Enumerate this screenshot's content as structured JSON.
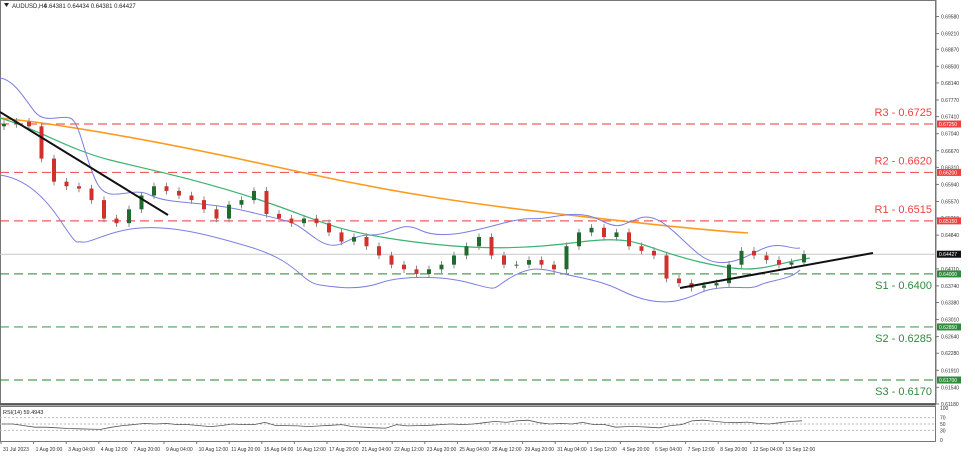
{
  "header": {
    "symbol_label": "AUDUSD,H4",
    "ohlc_label": "0.64381 0.64434 0.64381 0.64427"
  },
  "colors": {
    "bull": "#1f6b2e",
    "bear": "#d0312d",
    "wick": "#888888",
    "bollinger": "#7b7fe0",
    "ma_green": "#3cb371",
    "ma_orange": "#ff9a1f",
    "resistance": "#f04040",
    "support": "#2e8b3a",
    "trendline": "#111111",
    "current_price_line": "#c8c8c8",
    "current_price_tag": "#111111"
  },
  "price_axis": {
    "ticks": [
      "0.69580",
      "0.69210",
      "0.68870",
      "0.68500",
      "0.68140",
      "0.67770",
      "0.67410",
      "0.67040",
      "0.66670",
      "0.66310",
      "0.65940",
      "0.65570",
      "0.65210",
      "0.64840",
      "0.64110",
      "0.63740",
      "0.63380",
      "0.63010",
      "0.62640",
      "0.62280",
      "0.61910",
      "0.61540",
      "0.61180"
    ],
    "current_price": "0.64427"
  },
  "levels": [
    {
      "label": "R3 - 0.6725",
      "value": 0.6725,
      "tag": "0.67250",
      "type": "resistance"
    },
    {
      "label": "R2 - 0.6620",
      "value": 0.662,
      "tag": "0.66200",
      "type": "resistance"
    },
    {
      "label": "R1 - 0.6515",
      "value": 0.6515,
      "tag": "0.65150",
      "type": "resistance"
    },
    {
      "label": "S1 - 0.6400",
      "value": 0.64,
      "tag": "0.64000",
      "type": "support"
    },
    {
      "label": "S2 - 0.6285",
      "value": 0.6285,
      "tag": "0.62850",
      "type": "support"
    },
    {
      "label": "S3 - 0.6170",
      "value": 0.617,
      "tag": "0.61700",
      "type": "support"
    }
  ],
  "rsi": {
    "label": "RSI(14) 59.4943",
    "ticks": [
      "100",
      "70",
      "50",
      "30",
      "0"
    ]
  },
  "time_axis": {
    "labels": [
      "31 Jul 2023",
      "1 Aug 20:00",
      "3 Aug 04:00",
      "4 Aug 12:00",
      "7 Aug 20:00",
      "9 Aug 04:00",
      "10 Aug 12:00",
      "11 Aug 20:00",
      "15 Aug 04:00",
      "16 Aug 12:00",
      "17 Aug 20:00",
      "21 Aug 04:00",
      "22 Aug 12:00",
      "23 Aug 20:00",
      "25 Aug 04:00",
      "28 Aug 12:00",
      "29 Aug 20:00",
      "31 Aug 04:00",
      "1 Sep 12:00",
      "4 Sep 20:00",
      "6 Sep 04:00",
      "7 Sep 12:00",
      "8 Sep 20:00",
      "12 Sep 04:00",
      "13 Sep 12:00"
    ]
  },
  "chart_data": {
    "type": "candlestick",
    "title": "AUDUSD,H4",
    "ylim": [
      0.6118,
      0.6958
    ],
    "xlabel": "",
    "ylabel": "",
    "grid": false,
    "series": [
      {
        "name": "Price (approx close path)",
        "values": [
          0.6725,
          0.673,
          0.672,
          0.665,
          0.66,
          0.659,
          0.6585,
          0.656,
          0.652,
          0.651,
          0.654,
          0.657,
          0.659,
          0.658,
          0.657,
          0.656,
          0.654,
          0.652,
          0.655,
          0.656,
          0.658,
          0.653,
          0.652,
          0.651,
          0.652,
          0.651,
          0.649,
          0.647,
          0.648,
          0.646,
          0.644,
          0.642,
          0.641,
          0.64,
          0.641,
          0.642,
          0.644,
          0.646,
          0.648,
          0.644,
          0.642,
          0.642,
          0.643,
          0.642,
          0.641,
          0.646,
          0.649,
          0.65,
          0.648,
          0.649,
          0.646,
          0.645,
          0.644,
          0.639,
          0.638,
          0.637,
          0.6375,
          0.638,
          0.642,
          0.645,
          0.644,
          0.643,
          0.642,
          0.6425,
          0.6443
        ]
      },
      {
        "name": "Bollinger Upper",
        "type": "line"
      },
      {
        "name": "Bollinger Lower",
        "type": "line"
      },
      {
        "name": "MA green",
        "type": "line"
      },
      {
        "name": "MA orange",
        "type": "line"
      }
    ],
    "levels": {
      "R3": 0.6725,
      "R2": 0.662,
      "R1": 0.6515,
      "S1": 0.64,
      "S2": 0.6285,
      "S3": 0.617
    },
    "current_price": 0.64427,
    "rsi": {
      "period": 14,
      "value": 59.4943,
      "ticks": [
        0,
        30,
        50,
        70,
        100
      ]
    },
    "x_tick_labels": [
      "31 Jul 2023",
      "1 Aug 20:00",
      "3 Aug 04:00",
      "4 Aug 12:00",
      "7 Aug 20:00",
      "9 Aug 04:00",
      "10 Aug 12:00",
      "11 Aug 20:00",
      "15 Aug 04:00",
      "16 Aug 12:00",
      "17 Aug 20:00",
      "21 Aug 04:00",
      "22 Aug 12:00",
      "23 Aug 20:00",
      "25 Aug 04:00",
      "28 Aug 12:00",
      "29 Aug 20:00",
      "31 Aug 04:00",
      "1 Sep 12:00",
      "4 Sep 20:00",
      "6 Sep 04:00",
      "7 Sep 12:00",
      "8 Sep 20:00",
      "12 Sep 04:00",
      "13 Sep 12:00"
    ]
  }
}
